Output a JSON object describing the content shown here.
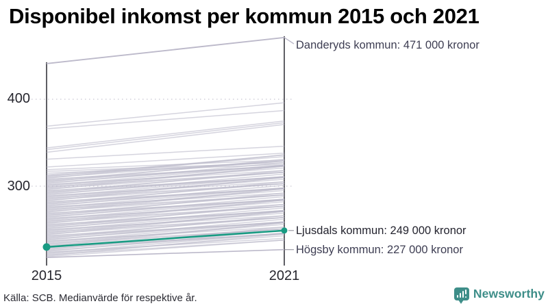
{
  "title": "Disponibel inkomst per kommun 2015 och 2021",
  "footer": {
    "source": "Källa: SCB. Medianvärde för respektive år."
  },
  "branding": {
    "name": "Newsworthy",
    "color": "#3e8e89",
    "icon": "bar-chart-speech-bubble"
  },
  "chart_data": {
    "type": "line",
    "subtype": "slope-chart",
    "title": "Disponibel inkomst per kommun 2015 och 2021",
    "x": [
      2015,
      2021
    ],
    "x_labels": [
      "2015",
      "2021"
    ],
    "y_ticks": [
      300,
      400
    ],
    "y_tick_labels": [
      "300",
      "400"
    ],
    "ylim": [
      215,
      475
    ],
    "unit": "tusen kronor",
    "grid": "dotted-horizontal",
    "colors": {
      "background_line": "#bcb9ca",
      "highlight_line": "#199b83",
      "axis": "#1a1a22",
      "grid": "#d2d0da",
      "connector": "#9a9aa5"
    },
    "highlight_series": {
      "name": "Ljusdals kommun",
      "values": [
        230,
        249
      ],
      "label": "Ljusdals kommun: 249 000 kronor"
    },
    "labeled_series": [
      {
        "name": "Danderyds kommun",
        "values": [
          441,
          471
        ],
        "label": "Danderyds kommun: 471 000 kronor"
      },
      {
        "name": "Högsby kommun",
        "values": [
          218,
          227
        ],
        "label": "Högsby kommun: 227 000 kronor"
      }
    ],
    "background_series": [
      [
        369,
        396
      ],
      [
        366,
        387
      ],
      [
        344,
        375
      ],
      [
        342,
        373
      ],
      [
        339,
        371
      ],
      [
        331,
        346
      ],
      [
        322,
        338
      ],
      [
        319,
        330
      ],
      [
        317,
        327
      ],
      [
        315,
        325
      ],
      [
        313,
        334
      ],
      [
        312,
        329
      ],
      [
        311,
        336
      ],
      [
        310,
        329
      ],
      [
        309,
        336
      ],
      [
        308,
        323
      ],
      [
        307,
        329
      ],
      [
        306,
        324
      ],
      [
        305,
        331
      ],
      [
        304,
        324
      ],
      [
        303,
        327
      ],
      [
        302,
        318
      ],
      [
        301,
        324
      ],
      [
        300,
        321
      ],
      [
        299,
        316
      ],
      [
        298,
        323
      ],
      [
        297,
        316
      ],
      [
        296,
        323
      ],
      [
        295,
        310
      ],
      [
        294,
        316
      ],
      [
        293,
        311
      ],
      [
        292,
        318
      ],
      [
        291,
        311
      ],
      [
        290,
        314
      ],
      [
        289,
        305
      ],
      [
        288,
        311
      ],
      [
        287,
        308
      ],
      [
        286,
        303
      ],
      [
        285,
        310
      ],
      [
        284,
        303
      ],
      [
        283,
        310
      ],
      [
        282,
        297
      ],
      [
        281,
        303
      ],
      [
        280,
        298
      ],
      [
        279,
        305
      ],
      [
        278,
        298
      ],
      [
        277,
        301
      ],
      [
        276,
        292
      ],
      [
        275,
        298
      ],
      [
        274,
        295
      ],
      [
        273,
        290
      ],
      [
        272,
        297
      ],
      [
        271,
        290
      ],
      [
        270,
        297
      ],
      [
        269,
        284
      ],
      [
        268,
        290
      ],
      [
        267,
        285
      ],
      [
        266,
        292
      ],
      [
        265,
        285
      ],
      [
        264,
        288
      ],
      [
        263,
        279
      ],
      [
        262,
        285
      ],
      [
        261,
        282
      ],
      [
        260,
        277
      ],
      [
        259,
        284
      ],
      [
        258,
        277
      ],
      [
        257,
        284
      ],
      [
        256,
        271
      ],
      [
        255,
        277
      ],
      [
        254,
        272
      ],
      [
        253,
        279
      ],
      [
        252,
        272
      ],
      [
        251,
        275
      ],
      [
        250,
        266
      ],
      [
        249,
        272
      ],
      [
        248,
        269
      ],
      [
        247,
        264
      ],
      [
        246,
        271
      ],
      [
        245,
        264
      ],
      [
        244,
        271
      ],
      [
        243,
        258
      ],
      [
        242,
        264
      ],
      [
        241,
        259
      ],
      [
        240,
        266
      ],
      [
        239,
        259
      ],
      [
        238,
        262
      ],
      [
        237,
        253
      ],
      [
        236,
        259
      ],
      [
        235,
        256
      ],
      [
        234,
        251
      ],
      [
        233,
        258
      ],
      [
        232,
        251
      ],
      [
        231,
        258
      ],
      [
        230,
        245
      ],
      [
        229,
        251
      ],
      [
        228,
        246
      ],
      [
        227,
        253
      ],
      [
        226,
        246
      ],
      [
        225,
        249
      ],
      [
        224,
        240
      ],
      [
        223,
        246
      ],
      [
        222,
        243
      ],
      [
        221,
        238
      ],
      [
        220,
        245
      ],
      [
        219,
        238
      ]
    ]
  }
}
